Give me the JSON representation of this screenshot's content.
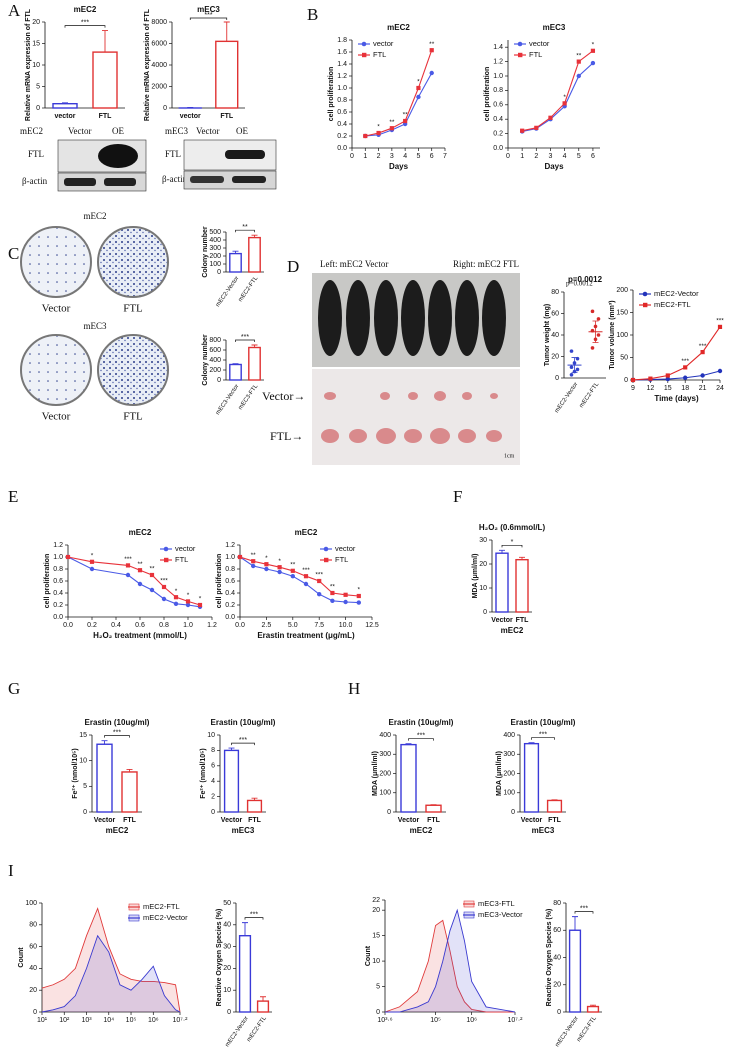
{
  "figure": {
    "panels": [
      "A",
      "B",
      "C",
      "D",
      "E",
      "F",
      "G",
      "H",
      "I"
    ],
    "blot_labels": [
      "mEC2",
      "Vector",
      "OE",
      "FTL",
      "β-actin",
      "mEC3",
      "Vector",
      "OE",
      "FTL",
      "β-actin"
    ],
    "colony_labels": [
      "mEC2",
      "Vector",
      "FTL",
      "mEC3",
      "Vector",
      "FTL"
    ],
    "mouse_labels": [
      "Left: mEC2 Vector",
      "Right: mEC2 FTL",
      "Vector→",
      "FTL→",
      "1cm"
    ]
  },
  "chart_data": [
    {
      "type": "bar",
      "title": "mEC2",
      "ylabel": "Relative mRNA expression of FTL",
      "categories": [
        "vector",
        "FTL"
      ],
      "values": [
        1,
        13
      ],
      "errors": [
        0.2,
        5
      ],
      "colors": [
        "#3a3ad8",
        "#e03232"
      ],
      "ylim": [
        0,
        20
      ],
      "yticks": [
        0,
        5,
        10,
        15,
        20
      ],
      "significance": "***"
    },
    {
      "type": "bar",
      "title": "mEC3",
      "ylabel": "Relative mRNA expression of FTL",
      "categories": [
        "vector",
        "FTL"
      ],
      "values": [
        1,
        6200
      ],
      "errors": [
        50,
        1800
      ],
      "colors": [
        "#3a3ad8",
        "#e03232"
      ],
      "ylim": [
        0,
        8000
      ],
      "yticks": [
        0,
        2000,
        4000,
        6000,
        8000
      ],
      "significance": "***"
    },
    {
      "type": "line",
      "title": "mEC2",
      "xlabel": "Days",
      "ylabel": "cell proliferation",
      "x": [
        1,
        2,
        3,
        4,
        5,
        6
      ],
      "xlim": [
        0,
        7
      ],
      "xticks": [
        0,
        1,
        2,
        3,
        4,
        5,
        6,
        7
      ],
      "ylim": [
        0,
        1.8
      ],
      "yticks": [
        {
          "value": 0,
          "label": "0.0"
        },
        0.2,
        0.4,
        0.6,
        0.8,
        {
          "value": 1,
          "label": "1.0"
        },
        1.2,
        1.4,
        1.6,
        1.8
      ],
      "legend": "upper left",
      "series": [
        {
          "name": "vector",
          "color": "#4a5ae6",
          "values": [
            0.2,
            0.22,
            0.3,
            0.4,
            0.85,
            1.25
          ]
        },
        {
          "name": "FTL",
          "color": "#e8323a",
          "values": [
            0.2,
            0.25,
            0.33,
            0.45,
            1.0,
            1.63
          ]
        }
      ],
      "annotations": [
        {
          "x": 2,
          "text": "*"
        },
        {
          "x": 3,
          "text": "**"
        },
        {
          "x": 4,
          "text": "**"
        },
        {
          "x": 5,
          "text": "*"
        },
        {
          "x": 6,
          "text": "**"
        }
      ]
    },
    {
      "type": "line",
      "title": "mEC3",
      "xlabel": "Days",
      "ylabel": "cell proliferation",
      "x": [
        1,
        2,
        3,
        4,
        5,
        6
      ],
      "xlim": [
        0,
        6.5
      ],
      "xticks": [
        0,
        1,
        2,
        3,
        4,
        5,
        6
      ],
      "ylim": [
        0,
        1.5
      ],
      "yticks": [
        {
          "value": 0,
          "label": "0.0"
        },
        0.2,
        0.4,
        0.6,
        0.8,
        {
          "value": 1,
          "label": "1.0"
        },
        1.2,
        1.4
      ],
      "legend": "upper left",
      "series": [
        {
          "name": "vector",
          "color": "#4a5ae6",
          "values": [
            0.23,
            0.27,
            0.4,
            0.58,
            1.0,
            1.18
          ]
        },
        {
          "name": "FTL",
          "color": "#e8323a",
          "values": [
            0.24,
            0.28,
            0.42,
            0.62,
            1.2,
            1.35
          ]
        }
      ],
      "annotations": [
        {
          "x": 4,
          "text": "*"
        },
        {
          "x": 5,
          "text": "**"
        },
        {
          "x": 6,
          "text": "*"
        }
      ]
    },
    {
      "type": "bar",
      "ylabel": "Colony number",
      "categories": [
        "mEC2-Vector",
        "mEC2-FTL"
      ],
      "values": [
        230,
        430
      ],
      "errors": [
        30,
        30
      ],
      "colors": [
        "#3a3ad8",
        "#e03232"
      ],
      "ylim": [
        0,
        500
      ],
      "yticks": [
        0,
        100,
        200,
        300,
        400,
        500
      ],
      "significance": "**"
    },
    {
      "type": "bar",
      "ylabel": "Colony number",
      "categories": [
        "mEC3-Vector",
        "mEC3-FTL"
      ],
      "values": [
        310,
        650
      ],
      "errors": [
        15,
        50
      ],
      "colors": [
        "#3a3ad8",
        "#e03232"
      ],
      "ylim": [
        0,
        800
      ],
      "yticks": [
        0,
        200,
        400,
        600,
        800
      ],
      "significance": "***"
    },
    {
      "type": "dot",
      "title": "p=0.0012",
      "ylabel": "Tumor weight (mg)",
      "categories": [
        "mEC2-Vector",
        "mEC2-FTL"
      ],
      "values": [
        [
          3,
          6,
          8,
          10,
          14,
          18,
          25
        ],
        [
          28,
          36,
          40,
          44,
          48,
          55,
          62
        ]
      ],
      "means": [
        12,
        43
      ],
      "errors": [
        7,
        10
      ],
      "colors": [
        "#3344cc",
        "#d62a2a"
      ],
      "ylim": [
        0,
        80
      ],
      "yticks": [
        0,
        20,
        40,
        60,
        80
      ]
    },
    {
      "type": "line",
      "xlabel": "Time (days)",
      "ylabel": "Tumor volume (mm³)",
      "x": [
        9,
        12,
        15,
        18,
        21,
        24
      ],
      "xlim": [
        9,
        24
      ],
      "xticks": [
        9,
        12,
        15,
        18,
        21,
        24
      ],
      "ylim": [
        0,
        200
      ],
      "yticks": [
        0,
        50,
        100,
        150,
        200
      ],
      "legend": "upper left",
      "series": [
        {
          "name": "mEC2-Vector",
          "color": "#2233bb",
          "values": [
            0,
            1,
            2,
            5,
            10,
            20
          ]
        },
        {
          "name": "mEC2-FTL",
          "color": "#e02828",
          "values": [
            0,
            3,
            10,
            28,
            62,
            118
          ]
        }
      ],
      "annotations": [
        {
          "x": 18,
          "text": "***"
        },
        {
          "x": 21,
          "text": "***"
        },
        {
          "x": 24,
          "text": "***"
        }
      ]
    },
    {
      "type": "line",
      "title": "mEC2",
      "xlabel": "H₂O₂ treatment (mmol/L)",
      "ylabel": "cell proliferation",
      "x": [
        0,
        0.2,
        0.5,
        0.6,
        0.7,
        0.8,
        0.9,
        1.0,
        1.1
      ],
      "xlim": [
        0,
        1.2
      ],
      "xticks": [
        {
          "value": 0,
          "label": "0.0"
        },
        0.2,
        0.4,
        0.6,
        0.8,
        {
          "value": 1,
          "label": "1.0"
        },
        1.2
      ],
      "ylim": [
        0,
        1.2
      ],
      "yticks": [
        {
          "value": 0,
          "label": "0.0"
        },
        0.2,
        0.4,
        0.6,
        0.8,
        {
          "value": 1,
          "label": "1.0"
        },
        1.2
      ],
      "legend": "upper right",
      "series": [
        {
          "name": "vector",
          "color": "#4a5ae6",
          "values": [
            1,
            0.8,
            0.7,
            0.55,
            0.45,
            0.3,
            0.22,
            0.2,
            0.17
          ]
        },
        {
          "name": "FTL",
          "color": "#e8323a",
          "values": [
            1,
            0.92,
            0.86,
            0.78,
            0.7,
            0.5,
            0.33,
            0.26,
            0.2
          ]
        }
      ],
      "annotations": [
        {
          "x": 0.2,
          "text": "*"
        },
        {
          "x": 0.5,
          "text": "***"
        },
        {
          "x": 0.6,
          "text": "**"
        },
        {
          "x": 0.7,
          "text": "**"
        },
        {
          "x": 0.8,
          "text": "***"
        },
        {
          "x": 0.9,
          "text": "*"
        },
        {
          "x": 1.0,
          "text": "*"
        },
        {
          "x": 1.1,
          "text": "*"
        }
      ]
    },
    {
      "type": "line",
      "title": "mEC2",
      "xlabel": "Erastin treatment (μg/mL)",
      "ylabel": "cell proliferation",
      "x": [
        0,
        1.25,
        2.5,
        3.75,
        5,
        6.25,
        7.5,
        8.75,
        10,
        11.25
      ],
      "xlim": [
        0,
        12.5
      ],
      "xticks": [
        {
          "value": 0,
          "label": "0.0"
        },
        2.5,
        {
          "value": 5,
          "label": "5.0"
        },
        7.5,
        {
          "value": 10,
          "label": "10.0"
        },
        12.5
      ],
      "ylim": [
        0,
        1.2
      ],
      "yticks": [
        {
          "value": 0,
          "label": "0.0"
        },
        0.2,
        0.4,
        0.6,
        0.8,
        {
          "value": 1,
          "label": "1.0"
        },
        1.2
      ],
      "legend": "upper right",
      "series": [
        {
          "name": "vector",
          "color": "#4a5ae6",
          "values": [
            1,
            0.85,
            0.8,
            0.75,
            0.68,
            0.55,
            0.38,
            0.27,
            0.25,
            0.24
          ]
        },
        {
          "name": "FTL",
          "color": "#e8323a",
          "values": [
            1,
            0.93,
            0.88,
            0.83,
            0.77,
            0.68,
            0.6,
            0.4,
            0.37,
            0.35
          ]
        }
      ],
      "annotations": [
        {
          "x": 1.25,
          "text": "**"
        },
        {
          "x": 2.5,
          "text": "*"
        },
        {
          "x": 3.75,
          "text": "*"
        },
        {
          "x": 5,
          "text": "**"
        },
        {
          "x": 6.25,
          "text": "***"
        },
        {
          "x": 7.5,
          "text": "***"
        },
        {
          "x": 8.75,
          "text": "**"
        },
        {
          "x": 11.25,
          "text": "*"
        }
      ]
    },
    {
      "type": "bar",
      "title": "H₂O₂ (0.6mmol/L)",
      "ylabel": "MDA (μml/ml)",
      "xlabel": "mEC2",
      "categories": [
        "Vector",
        "FTL"
      ],
      "values": [
        24.5,
        21.8
      ],
      "errors": [
        1.2,
        1
      ],
      "colors": [
        "#3a3ad8",
        "#e03232"
      ],
      "ylim": [
        0,
        30
      ],
      "yticks": [
        0,
        10,
        20,
        30
      ],
      "significance": "*"
    },
    {
      "type": "bar",
      "title": "Erastin (10ug/ml)",
      "ylabel": "Fe²⁺ (nmol/10⁵)",
      "xlabel": "mEC2",
      "categories": [
        "Vector",
        "FTL"
      ],
      "values": [
        13.2,
        7.8
      ],
      "errors": [
        0.7,
        0.5
      ],
      "colors": [
        "#3a3ad8",
        "#e03232"
      ],
      "ylim": [
        0,
        15
      ],
      "yticks": [
        0,
        5,
        10,
        15
      ],
      "significance": "***"
    },
    {
      "type": "bar",
      "title": "Erastin (10ug/ml)",
      "ylabel": "Fe²⁺ (nmol/10⁵)",
      "xlabel": "mEC3",
      "categories": [
        "Vector",
        "FTL"
      ],
      "values": [
        8,
        1.5
      ],
      "errors": [
        0.3,
        0.3
      ],
      "colors": [
        "#3a3ad8",
        "#e03232"
      ],
      "ylim": [
        0,
        10
      ],
      "yticks": [
        0,
        2,
        4,
        6,
        8,
        10
      ],
      "significance": "***"
    },
    {
      "type": "bar",
      "title": "Erastin (10ug/ml)",
      "ylabel": "MDA (μml/ml)",
      "xlabel": "mEC2",
      "categories": [
        "Vector",
        "FTL"
      ],
      "values": [
        350,
        35
      ],
      "errors": [
        5,
        3
      ],
      "colors": [
        "#3a3ad8",
        "#e03232"
      ],
      "ylim": [
        0,
        400
      ],
      "yticks": [
        0,
        100,
        200,
        300,
        400
      ],
      "significance": "***"
    },
    {
      "type": "bar",
      "title": "Erastin (10ug/ml)",
      "ylabel": "MDA (μml/ml)",
      "xlabel": "mEC3",
      "categories": [
        "Vector",
        "FTL"
      ],
      "values": [
        355,
        60
      ],
      "errors": [
        5,
        3
      ],
      "colors": [
        "#3a3ad8",
        "#e03232"
      ],
      "ylim": [
        0,
        400
      ],
      "yticks": [
        0,
        100,
        200,
        300,
        400
      ],
      "significance": "***"
    },
    {
      "type": "area",
      "ylabel": "Count",
      "xlog": true,
      "x": [
        10,
        31.6,
        100,
        316,
        1000,
        3162,
        10000,
        31623,
        100000,
        316228,
        1000000,
        3162278,
        10000000,
        15848932
      ],
      "xlim": [
        10,
        15848932
      ],
      "xticks": [
        {
          "value": 10,
          "label": "10¹"
        },
        {
          "value": 100,
          "label": "10²"
        },
        {
          "value": 1000,
          "label": "10³"
        },
        {
          "value": 10000,
          "label": "10⁴"
        },
        {
          "value": 100000,
          "label": "10⁵"
        },
        {
          "value": 1000000,
          "label": "10⁶"
        },
        {
          "value": 15848932,
          "label": "10⁷·²"
        }
      ],
      "ylim": [
        0,
        100
      ],
      "yticks": [
        0,
        20,
        40,
        60,
        80,
        100
      ],
      "legend": "upper right",
      "series": [
        {
          "name": "mEC2-FTL",
          "color": "#e03a3a",
          "values": [
            22,
            25,
            30,
            40,
            70,
            95,
            60,
            35,
            30,
            28,
            28,
            27,
            25,
            0
          ]
        },
        {
          "name": "mEC2-Vector",
          "color": "#3a3ad0",
          "values": [
            0,
            2,
            5,
            15,
            40,
            70,
            55,
            25,
            20,
            30,
            42,
            15,
            2,
            0
          ]
        }
      ]
    },
    {
      "type": "bar",
      "ylabel": "Reactive Oxygen Species (%)",
      "categories": [
        "mEC2-Vector",
        "mEC2-FTL"
      ],
      "values": [
        35,
        5
      ],
      "errors": [
        6,
        2
      ],
      "colors": [
        "#3a3ad8",
        "#e03232"
      ],
      "ylim": [
        0,
        50
      ],
      "yticks": [
        0,
        10,
        20,
        30,
        40,
        50
      ],
      "significance": "***"
    },
    {
      "type": "area",
      "ylabel": "Count",
      "xlog": true,
      "x": [
        3981,
        10000,
        31623,
        63096,
        100000,
        158489,
        251189,
        398107,
        630957,
        1000000,
        2511886,
        15848932
      ],
      "xlim": [
        3981,
        15848932
      ],
      "xticks": [
        {
          "value": 3981,
          "label": "10³·⁶"
        },
        {
          "value": 100000,
          "label": "10⁵"
        },
        {
          "value": 1000000,
          "label": "10⁶"
        },
        {
          "value": 15848932,
          "label": "10⁷·²"
        }
      ],
      "ylim": [
        0,
        22
      ],
      "yticks": [
        0,
        5,
        10,
        15,
        20,
        22
      ],
      "legend": "upper right",
      "series": [
        {
          "name": "mEC3-FTL",
          "color": "#e03a3a",
          "values": [
            0,
            1,
            4,
            10,
            17,
            18,
            12,
            5,
            2,
            0.5,
            0,
            0
          ]
        },
        {
          "name": "mEC3-Vector",
          "color": "#3a3ad0",
          "values": [
            0,
            0,
            1,
            2,
            5,
            10,
            16,
            20,
            14,
            6,
            1,
            0
          ]
        }
      ]
    },
    {
      "type": "bar",
      "ylabel": "Reactive Oxygen Species (%)",
      "categories": [
        "mEC3-Vector",
        "mEC3-FTL"
      ],
      "values": [
        60,
        4
      ],
      "errors": [
        10,
        1
      ],
      "colors": [
        "#3a3ad8",
        "#e03232"
      ],
      "ylim": [
        0,
        80
      ],
      "yticks": [
        0,
        20,
        40,
        60,
        80
      ],
      "significance": "***"
    }
  ]
}
